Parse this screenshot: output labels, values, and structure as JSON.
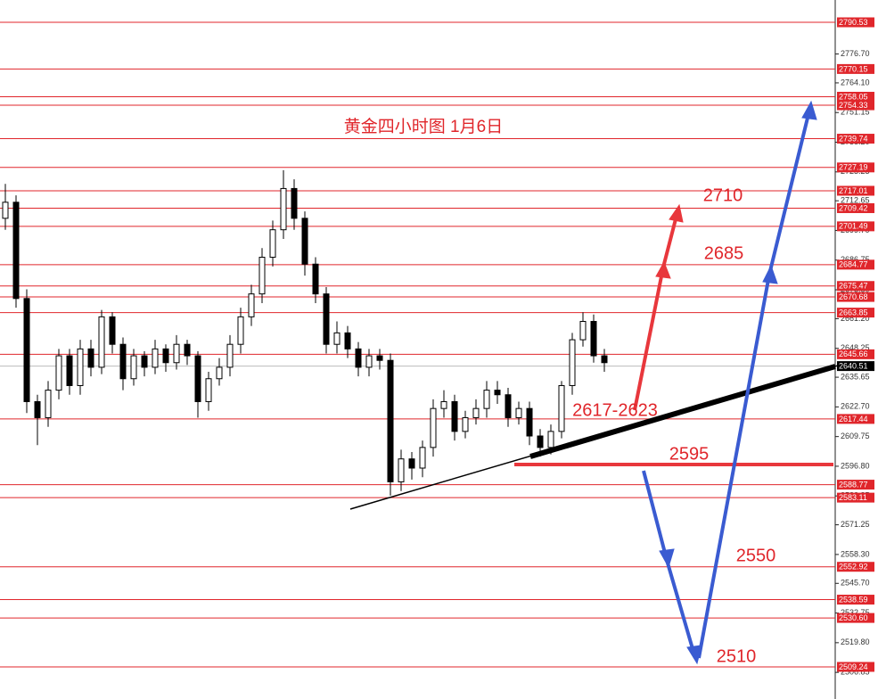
{
  "chart_data": {
    "type": "candlestick",
    "title": "黄金四小时图  1月6日",
    "open": [
      2705,
      2712,
      2670,
      2625,
      2618,
      2630,
      2645,
      2632,
      2648,
      2640,
      2662,
      2650,
      2635,
      2645,
      2640,
      2648,
      2642,
      2650,
      2645,
      2625,
      2635,
      2640,
      2650,
      2662,
      2672,
      2688,
      2700,
      2718,
      2705,
      2685,
      2672,
      2650,
      2655,
      2648,
      2640,
      2645,
      2643,
      2590,
      2600,
      2596,
      2605,
      2622,
      2625,
      2612,
      2618,
      2622,
      2630,
      2628,
      2618,
      2622,
      2610,
      2605,
      2612,
      2632,
      2652,
      2660,
      2645
    ],
    "high": [
      2720,
      2715,
      2674,
      2628,
      2634,
      2648,
      2648,
      2652,
      2652,
      2665,
      2664,
      2653,
      2648,
      2647,
      2652,
      2650,
      2654,
      2652,
      2647,
      2638,
      2644,
      2654,
      2666,
      2676,
      2692,
      2704,
      2726,
      2722,
      2708,
      2688,
      2675,
      2660,
      2658,
      2651,
      2648,
      2648,
      2646,
      2604,
      2603,
      2608,
      2626,
      2630,
      2628,
      2621,
      2626,
      2634,
      2634,
      2631,
      2625,
      2625,
      2613,
      2615,
      2634,
      2655,
      2664,
      2663,
      2648
    ],
    "low": [
      2700,
      2666,
      2620,
      2606,
      2614,
      2626,
      2628,
      2628,
      2636,
      2637,
      2646,
      2630,
      2632,
      2636,
      2637,
      2638,
      2639,
      2641,
      2618,
      2621,
      2632,
      2636,
      2646,
      2658,
      2668,
      2684,
      2696,
      2700,
      2680,
      2668,
      2646,
      2646,
      2644,
      2636,
      2636,
      2639,
      2584,
      2586,
      2591,
      2592,
      2601,
      2618,
      2608,
      2609,
      2615,
      2618,
      2624,
      2614,
      2615,
      2606,
      2601,
      2602,
      2609,
      2628,
      2649,
      2642,
      2638
    ],
    "close": [
      2712,
      2670,
      2625,
      2618,
      2630,
      2645,
      2632,
      2648,
      2640,
      2662,
      2650,
      2635,
      2645,
      2640,
      2648,
      2642,
      2650,
      2645,
      2625,
      2635,
      2640,
      2650,
      2662,
      2672,
      2688,
      2700,
      2718,
      2705,
      2685,
      2672,
      2650,
      2655,
      2648,
      2640,
      2645,
      2643,
      2590,
      2600,
      2596,
      2605,
      2622,
      2625,
      2612,
      2618,
      2622,
      2630,
      2628,
      2618,
      2622,
      2610,
      2605,
      2612,
      2632,
      2652,
      2660,
      2645,
      2642
    ],
    "ylim": [
      2495.23,
      2800.26
    ],
    "yticks": [
      {
        "value": 2776.7,
        "label": "2776.70"
      },
      {
        "value": 2764.1,
        "label": "2764.10"
      },
      2751.15,
      {
        "value": 2738.2,
        "label": "2738.20"
      },
      2725.25,
      2712.65,
      {
        "value": 2699.7,
        "label": "2699.70"
      },
      2686.75,
      {
        "value": 2673.8,
        "label": "2673.80"
      },
      {
        "value": 2661.2,
        "label": "2661.20"
      },
      2648.25,
      2635.65,
      {
        "value": 2622.7,
        "label": "2622.70"
      },
      2609.75,
      {
        "value": 2596.8,
        "label": "2596.80"
      },
      2583.85,
      2571.25,
      {
        "value": 2558.3,
        "label": "2558.30"
      },
      {
        "value": 2545.7,
        "label": "2545.70"
      },
      2532.75,
      {
        "value": 2519.8,
        "label": "2519.80"
      },
      2506.85
    ],
    "levels": [
      2790.53,
      2770.15,
      2758.05,
      2754.33,
      2739.74,
      2727.19,
      2717.01,
      2709.42,
      2701.49,
      2684.77,
      2675.47,
      2670.68,
      2663.85,
      2645.66,
      2617.44,
      2588.77,
      2583.11,
      2552.92,
      2538.59,
      {
        "value": 2530.6,
        "label": "2530.60"
      },
      2509.24
    ],
    "last_price": 2640.51,
    "annotations": [
      "2710",
      "2685",
      "2617-2623",
      "2595",
      "2550",
      "2510"
    ],
    "up_color": "#ffffff",
    "down_color": "#000000",
    "level_color": "#e0262b"
  }
}
